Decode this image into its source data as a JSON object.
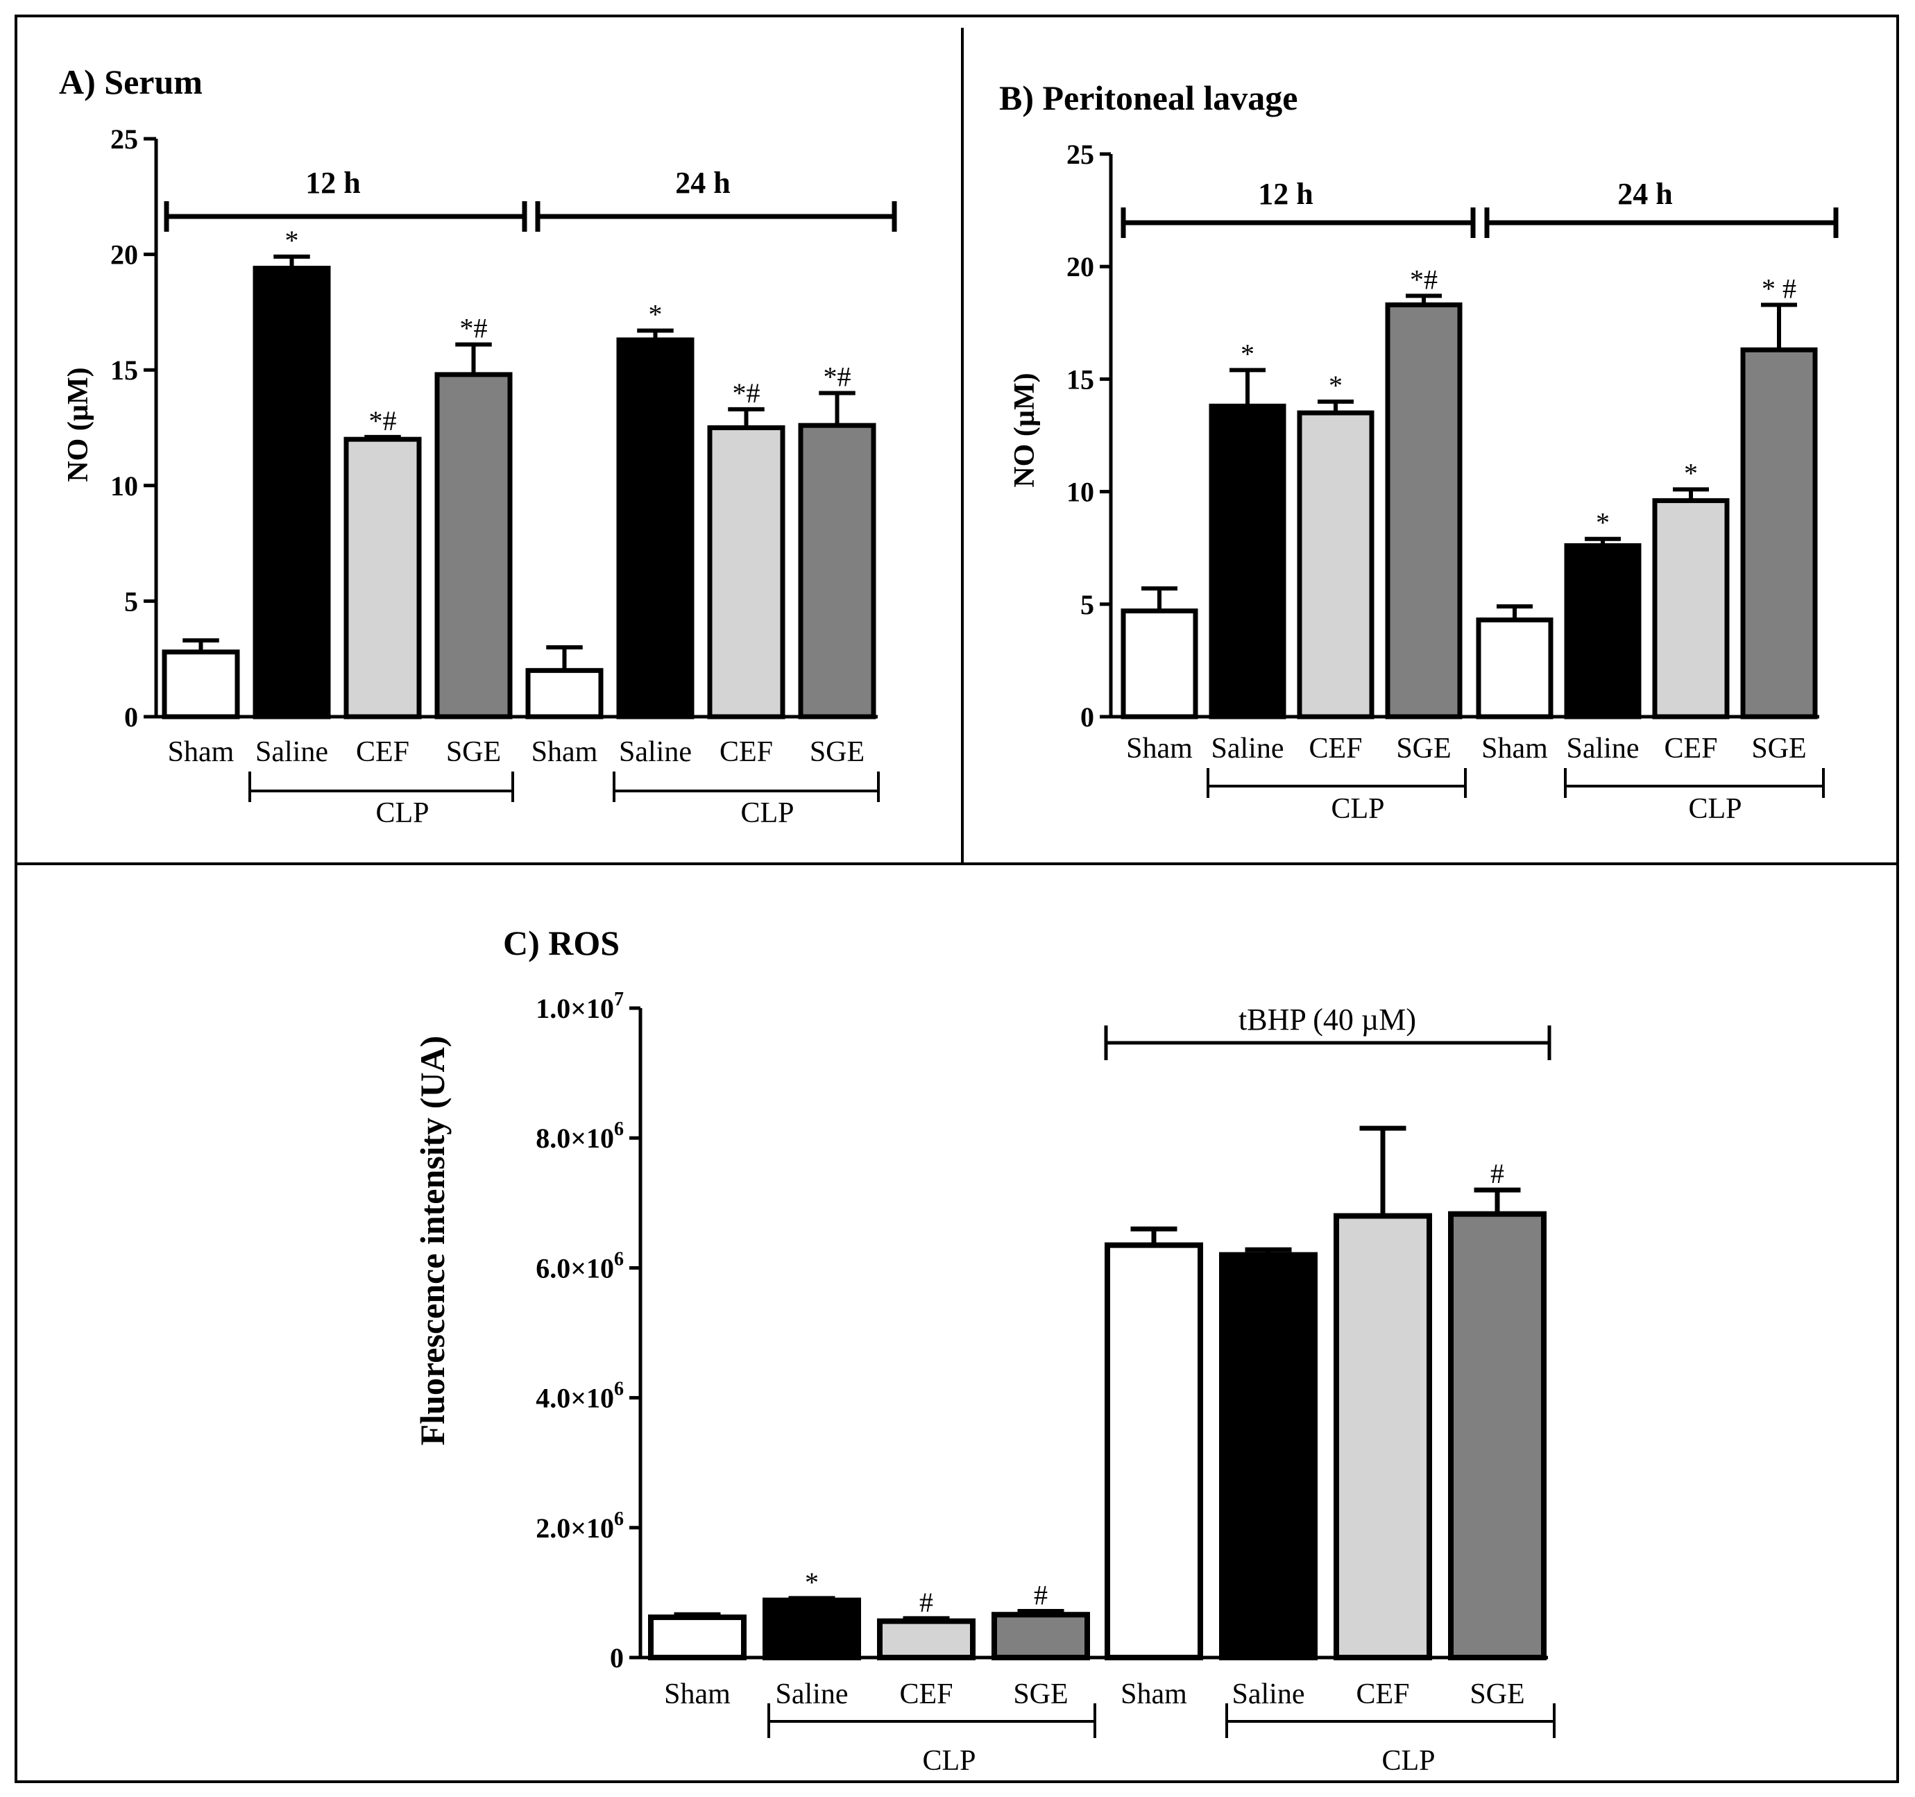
{
  "colors": {
    "sham": "#ffffff",
    "saline": "#000000",
    "cef": "#d4d4d4",
    "sge": "#808080",
    "frame": "#000000"
  },
  "chart_data": [
    {
      "id": "A",
      "type": "bar",
      "title": "A) Serum",
      "ylabel": "NO (µM)",
      "ylim": [
        0,
        25
      ],
      "yticks": [
        0,
        5,
        10,
        15,
        20,
        25
      ],
      "ytick_labels": [
        "0",
        "5",
        "10",
        "15",
        "20",
        "25"
      ],
      "categories": [
        "Sham",
        "Saline",
        "CEF",
        "SGE",
        "Sham",
        "Saline",
        "CEF",
        "SGE"
      ],
      "groups": [
        "12 h",
        "24 h"
      ],
      "subgroup_label": "CLP",
      "values": [
        2.8,
        19.4,
        12.0,
        14.8,
        2.0,
        16.3,
        12.5,
        12.6
      ],
      "errors": [
        0.5,
        0.5,
        0.1,
        1.3,
        1.0,
        0.4,
        0.8,
        1.4
      ],
      "significance": [
        "",
        "*",
        "*#",
        "*#",
        "",
        "*",
        "*#",
        "*#"
      ]
    },
    {
      "id": "B",
      "type": "bar",
      "title": "B) Peritoneal lavage",
      "ylabel": "NO (µM)",
      "ylim": [
        0,
        25
      ],
      "yticks": [
        0,
        5,
        10,
        15,
        20,
        25
      ],
      "ytick_labels": [
        "0",
        "5",
        "10",
        "15",
        "20",
        "25"
      ],
      "categories": [
        "Sham",
        "Saline",
        "CEF",
        "SGE",
        "Sham",
        "Saline",
        "CEF",
        "SGE"
      ],
      "groups": [
        "12 h",
        "24 h"
      ],
      "subgroup_label": "CLP",
      "values": [
        4.7,
        13.8,
        13.5,
        18.3,
        4.3,
        7.6,
        9.6,
        16.3
      ],
      "errors": [
        1.0,
        1.6,
        0.5,
        0.4,
        0.6,
        0.3,
        0.5,
        2.0
      ],
      "significance": [
        "",
        "*",
        "*",
        "*#",
        "",
        "*",
        "*",
        "* #"
      ]
    },
    {
      "id": "C",
      "type": "bar",
      "title": "C) ROS",
      "ylabel": "Fluorescence intensity  (UA)",
      "ylim": [
        0,
        10000000
      ],
      "yticks": [
        0,
        2000000,
        4000000,
        6000000,
        8000000,
        10000000
      ],
      "ytick_labels": [
        {
          "mant": "0",
          "exp": ""
        },
        {
          "mant": "2.0×10",
          "exp": "6"
        },
        {
          "mant": "4.0×10",
          "exp": "6"
        },
        {
          "mant": "6.0×10",
          "exp": "6"
        },
        {
          "mant": "8.0×10",
          "exp": "6"
        },
        {
          "mant": "1.0×10",
          "exp": "7"
        }
      ],
      "categories": [
        "Sham",
        "Saline",
        "CEF",
        "SGE",
        "Sham",
        "Saline",
        "CEF",
        "SGE"
      ],
      "bracket_label": "tBHP (40 µM)",
      "subgroup_label": "CLP",
      "values": [
        620000,
        880000,
        560000,
        660000,
        6350000,
        6200000,
        6800000,
        6830000
      ],
      "errors": [
        40000,
        30000,
        40000,
        50000,
        250000,
        80000,
        1350000,
        370000
      ],
      "significance": [
        "",
        "*",
        "#",
        "#",
        "",
        "",
        "",
        "#"
      ]
    }
  ]
}
